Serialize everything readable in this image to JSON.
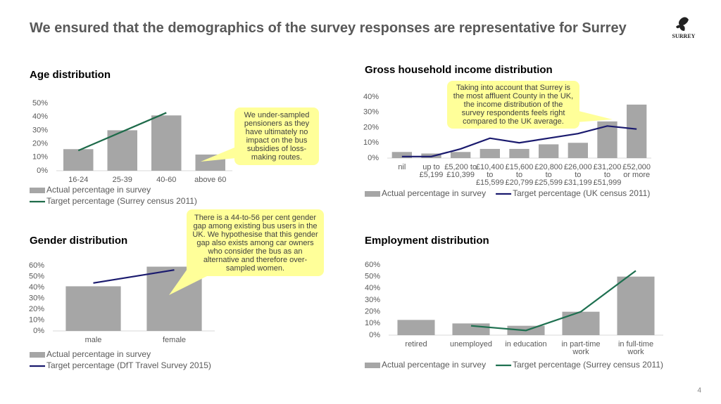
{
  "slide": {
    "title": "We ensured that the demographics of the survey responses are representative for Surrey",
    "logo": "SURREY",
    "page_number": "4"
  },
  "chart_data": [
    {
      "type": "bar",
      "title": "Age distribution",
      "categories": [
        "16-24",
        "25-39",
        "40-60",
        "above 60"
      ],
      "series": [
        {
          "name": "Actual percentage in survey",
          "type": "bar",
          "color": "#a6a6a6",
          "values": [
            16,
            30,
            41,
            12
          ]
        },
        {
          "name": "Target percentage (Surrey census 2011)",
          "type": "line",
          "color": "#1e6b4a",
          "values": [
            15,
            29,
            43,
            null
          ]
        }
      ],
      "ylim": [
        0,
        50
      ],
      "yticks": [
        {
          "value": 0,
          "label": "0%"
        },
        {
          "value": 10,
          "label": "10%"
        },
        {
          "value": 20,
          "label": "20%"
        },
        {
          "value": 30,
          "label": "30%"
        },
        {
          "value": 40,
          "label": "40%"
        },
        {
          "value": 50,
          "label": "50%"
        }
      ],
      "grid": false,
      "legend": "bottom",
      "annotation": "We under-sampled pensioners as they have ultimately no impact on the bus subsidies of loss-making routes."
    },
    {
      "type": "bar",
      "title": "Gross household income distribution",
      "categories": [
        "nil",
        "up to\n£5,199",
        "£5,200 to\n£10,399",
        "£10,400\nto\n£15,599",
        "£15,600\nto\n£20,799",
        "£20,800\nto\n£25,599",
        "£26,000\nto\n£31,199",
        "£31,200\nto\n£51,999",
        "£52,000\nor more"
      ],
      "series": [
        {
          "name": "Actual percentage in survey",
          "type": "bar",
          "color": "#a6a6a6",
          "values": [
            4,
            3,
            4,
            6,
            6,
            9,
            10,
            24,
            35
          ]
        },
        {
          "name": "Target percentage (UK census 2011)",
          "type": "line",
          "color": "#1a1a6e",
          "values": [
            1,
            1,
            6,
            13,
            10,
            13,
            16,
            21,
            19
          ]
        }
      ],
      "ylim": [
        0,
        40
      ],
      "yticks": [
        {
          "value": 0,
          "label": "0%"
        },
        {
          "value": 10,
          "label": "10%"
        },
        {
          "value": 20,
          "label": "20%"
        },
        {
          "value": 30,
          "label": "30%"
        },
        {
          "value": 40,
          "label": "40%"
        }
      ],
      "grid": false,
      "legend": "bottom",
      "annotation": "Taking into account that Surrey is the most affluent County in the UK, the income distribution of the survey respondents feels right compared to the UK average."
    },
    {
      "type": "bar",
      "title": "Gender distribution",
      "categories": [
        "male",
        "female"
      ],
      "series": [
        {
          "name": "Actual percentage in survey",
          "type": "bar",
          "color": "#a6a6a6",
          "values": [
            41,
            59
          ]
        },
        {
          "name": "Target percentage (DfT Travel Survey 2015)",
          "type": "line",
          "color": "#1a1a6e",
          "values": [
            44,
            56
          ]
        }
      ],
      "ylim": [
        0,
        60
      ],
      "yticks": [
        {
          "value": 0,
          "label": "0%"
        },
        {
          "value": 10,
          "label": "10%"
        },
        {
          "value": 20,
          "label": "20%"
        },
        {
          "value": 30,
          "label": "30%"
        },
        {
          "value": 40,
          "label": "40%"
        },
        {
          "value": 50,
          "label": "50%"
        },
        {
          "value": 60,
          "label": "60%"
        }
      ],
      "grid": false,
      "legend": "bottom",
      "annotation": "There is a 44-to-56 per cent gender gap among existing bus users in the UK. We hypothesise that this gender gap also exists among car owners who consider the bus as an alternative and therefore over-sampled women."
    },
    {
      "type": "bar",
      "title": "Employment distribution",
      "categories": [
        "retired",
        "unemployed",
        "in education",
        "in part-time\nwork",
        "in full-time\nwork"
      ],
      "series": [
        {
          "name": "Actual percentage in survey",
          "type": "bar",
          "color": "#a6a6a6",
          "values": [
            13,
            10,
            8,
            20,
            50
          ]
        },
        {
          "name": "Target percentage (Surrey census 2011)",
          "type": "line",
          "color": "#1e7050",
          "values": [
            null,
            8,
            4,
            20,
            55
          ]
        }
      ],
      "ylim": [
        0,
        60
      ],
      "yticks": [
        {
          "value": 0,
          "label": "0%"
        },
        {
          "value": 10,
          "label": "10%"
        },
        {
          "value": 20,
          "label": "20%"
        },
        {
          "value": 30,
          "label": "30%"
        },
        {
          "value": 40,
          "label": "40%"
        },
        {
          "value": 50,
          "label": "50%"
        },
        {
          "value": 60,
          "label": "60%"
        }
      ],
      "grid": false,
      "legend": "bottom"
    }
  ]
}
